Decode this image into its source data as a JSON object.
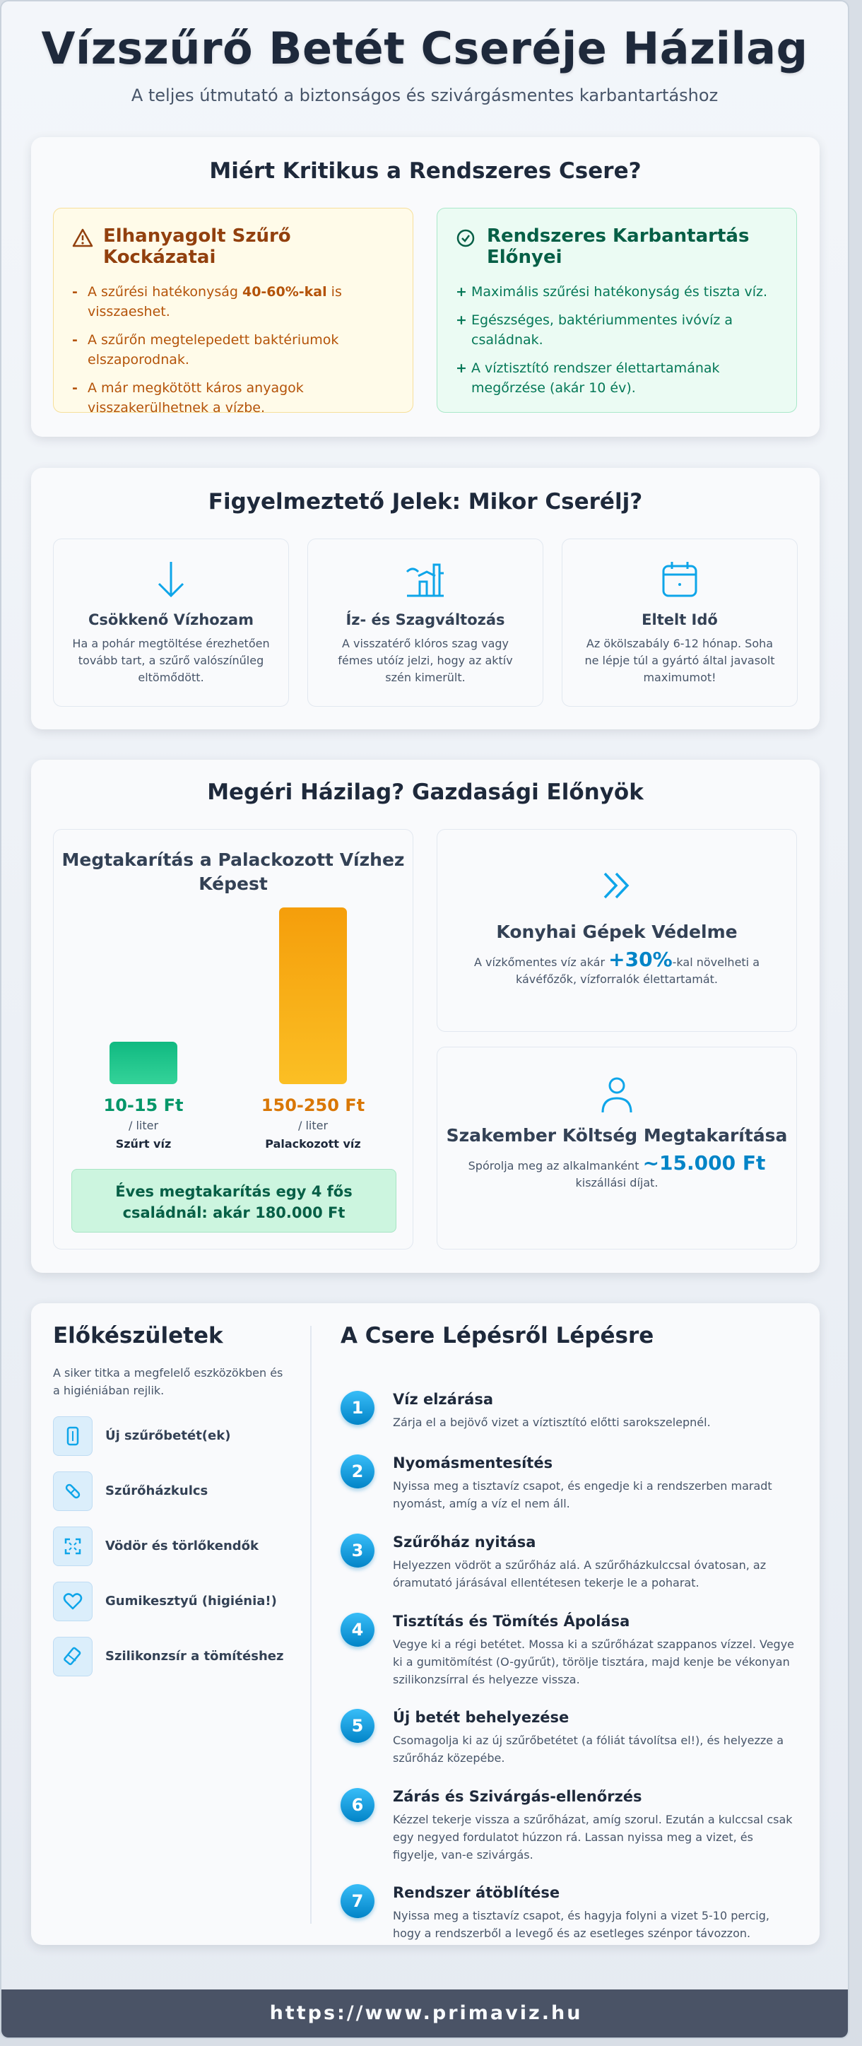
{
  "header": {
    "title": "Vízszűrő Betét Cseréje Házilag",
    "subtitle": "A teljes útmutató a biztonságos és szivárgásmentes karbantartáshoz"
  },
  "why": {
    "title": "Miért Kritikus a Rendszeres Csere?",
    "risks": {
      "title": "Elhanyagolt Szűrő Kockázatai",
      "items": [
        {
          "before": "A szűrési hatékonyság ",
          "bold": "40-60%-kal",
          "after": " is visszaeshet."
        },
        {
          "text": "A szűrőn megtelepedett baktériumok elszaporodnak."
        },
        {
          "text": "A már megkötött káros anyagok visszakerülhetnek a vízbe."
        }
      ]
    },
    "benefits": {
      "title": "Rendszeres Karbantartás Előnyei",
      "items": [
        "Maximális szűrési hatékonyság és tiszta víz.",
        "Egészséges, baktériummentes ivóvíz a családnak.",
        "A víztisztító rendszer élettartamának megőrzése (akár 10 év)."
      ]
    }
  },
  "signs": {
    "title": "Figyelmeztető Jelek: Mikor Cserélj?",
    "items": [
      {
        "title": "Csökkenő Vízhozam",
        "text": "Ha a pohár megtöltése érezhetően tovább tart, a szűrő valószínűleg eltömődött."
      },
      {
        "title": "Íz- és Szagváltozás",
        "text": "A visszatérő klóros szag vagy fémes utóíz jelzi, hogy az aktív szén kimerült."
      },
      {
        "title": "Eltelt Idő",
        "text": "Az ökölszabály 6-12 hónap. Soha ne lépje túl a gyártó által javasolt maximumot!"
      }
    ]
  },
  "economy": {
    "title": "Megéri Házilag? Gazdasági Előnyök",
    "savings_note": "Éves megtakarítás egy 4 fős családnál: akár 180.000 Ft",
    "machines": {
      "title": "Konyhai Gépek Védelme",
      "before": "A vízkőmentes víz akár ",
      "highlight": "+30%",
      "after": "-kal növelheti a kávéfőzők, vízforralók élettartamát."
    },
    "expert": {
      "title": "Szakember Költség Megtakarítása",
      "before": "Spórolja meg az alkalmanként ",
      "highlight": "~15.000 Ft",
      "after": " kiszállási díjat."
    }
  },
  "chart_data": {
    "type": "bar",
    "title": "Megtakarítás a Palackozott Vízhez Képest",
    "categories": [
      "Szűrt víz",
      "Palackozott víz"
    ],
    "value_labels": [
      "10-15 Ft",
      "150-250 Ft"
    ],
    "unit_label": "/ liter",
    "values": [
      12.5,
      200
    ],
    "ylim": [
      0,
      200
    ],
    "colors": [
      "#10b981",
      "#f59e0b"
    ]
  },
  "prep": {
    "title": "Előkészületek",
    "intro": "A siker titka a megfelelő eszközökben és a higiéniában rejlik.",
    "tools": [
      {
        "label": "Új szűrőbetét(ek)",
        "icon": "filter-cartridge-icon"
      },
      {
        "label": "Szűrőházkulcs",
        "icon": "wrench-icon"
      },
      {
        "label": "Vödör és törlőkendők",
        "icon": "expand-icon"
      },
      {
        "label": "Gumikesztyű (higiénia!)",
        "icon": "heart-icon"
      },
      {
        "label": "Szilikonzsír a tömítéshez",
        "icon": "eraser-icon"
      }
    ]
  },
  "steps": {
    "title": "A Csere Lépésről Lépésre",
    "items": [
      {
        "num": "1",
        "title": "Víz elzárása",
        "text": "Zárja el a bejövő vizet a víztisztító előtti sarokszelepnél."
      },
      {
        "num": "2",
        "title": "Nyomásmentesítés",
        "text": "Nyissa meg a tisztavíz csapot, és engedje ki a rendszerben maradt nyomást, amíg a víz el nem áll."
      },
      {
        "num": "3",
        "title": "Szűrőház nyitása",
        "text": "Helyezzen vödröt a szűrőház alá. A szűrőházkulccsal óvatosan, az óramutató járásával ellentétesen tekerje le a poharat."
      },
      {
        "num": "4",
        "title": "Tisztítás és Tömítés Ápolása",
        "text": "Vegye ki a régi betétet. Mossa ki a szűrőházat szappanos vízzel. Vegye ki a gumitömítést (O-gyűrűt), törölje tisztára, majd kenje be vékonyan szilikonzsírral és helyezze vissza."
      },
      {
        "num": "5",
        "title": "Új betét behelyezése",
        "text": "Csomagolja ki az új szűrőbetétet (a fóliát távolítsa el!), és helyezze a szűrőház közepébe."
      },
      {
        "num": "6",
        "title": "Zárás és Szivárgás-ellenőrzés",
        "text": "Kézzel tekerje vissza a szűrőházat, amíg szorul. Ezután a kulccsal csak egy negyed fordulatot húzzon rá. Lassan nyissa meg a vizet, és figyelje, van-e szivárgás."
      },
      {
        "num": "7",
        "title": "Rendszer átöblítése",
        "text": "Nyissa meg a tisztavíz csapot, és hagyja folyni a vizet 5-10 percig, hogy a rendszerből a levegő és az esetleges szénpor távozzon."
      }
    ]
  },
  "footer": {
    "url": "https://www.primaviz.hu"
  }
}
